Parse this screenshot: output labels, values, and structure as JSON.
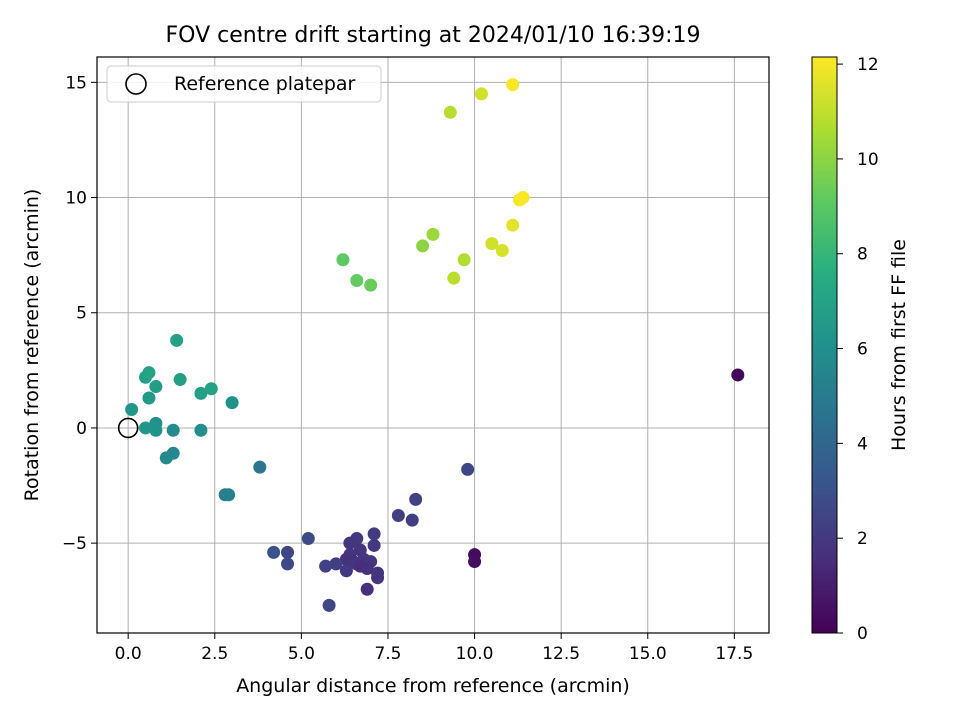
{
  "chart_data": {
    "type": "scatter",
    "title": "FOV centre drift starting at 2024/01/10 16:39:19",
    "xlabel": "Angular distance from reference (arcmin)",
    "ylabel": "Rotation from reference (arcmin)",
    "xlim": [
      -0.9,
      18.5
    ],
    "ylim": [
      -8.9,
      16.1
    ],
    "xticks": [
      0.0,
      2.5,
      5.0,
      7.5,
      10.0,
      12.5,
      15.0,
      17.5
    ],
    "xtick_labels": [
      "0.0",
      "2.5",
      "5.0",
      "7.5",
      "10.0",
      "12.5",
      "15.0",
      "17.5"
    ],
    "yticks": [
      -5,
      0,
      5,
      10,
      15
    ],
    "ytick_labels": [
      "−5",
      "0",
      "5",
      "10",
      "15"
    ],
    "grid": true,
    "legend": {
      "position": "top-left",
      "entries": [
        "Reference platepar"
      ]
    },
    "colorbar": {
      "label": "Hours from first FF file",
      "colormap": "viridis",
      "range": [
        0,
        12.15
      ],
      "ticks": [
        0,
        2,
        4,
        6,
        8,
        10,
        12
      ],
      "tick_labels": [
        "0",
        "2",
        "4",
        "6",
        "8",
        "10",
        "12"
      ]
    },
    "reference_point": {
      "name": "Reference platepar",
      "x": 0.0,
      "y": 0.0
    },
    "points": [
      {
        "x": 17.6,
        "y": 2.3,
        "hours": 0.2
      },
      {
        "x": 10.0,
        "y": -5.5,
        "hours": 0.3
      },
      {
        "x": 10.0,
        "y": -5.8,
        "hours": 0.4
      },
      {
        "x": 9.8,
        "y": -1.8,
        "hours": 2.6
      },
      {
        "x": 8.3,
        "y": -3.1,
        "hours": 2.4
      },
      {
        "x": 7.8,
        "y": -3.8,
        "hours": 2.3
      },
      {
        "x": 8.2,
        "y": -4.0,
        "hours": 2.2
      },
      {
        "x": 7.1,
        "y": -4.6,
        "hours": 2.1
      },
      {
        "x": 7.1,
        "y": -5.1,
        "hours": 2.0
      },
      {
        "x": 6.6,
        "y": -4.8,
        "hours": 2.0
      },
      {
        "x": 6.4,
        "y": -5.0,
        "hours": 1.9
      },
      {
        "x": 6.7,
        "y": -5.3,
        "hours": 1.8
      },
      {
        "x": 6.4,
        "y": -5.5,
        "hours": 1.8
      },
      {
        "x": 6.3,
        "y": -5.7,
        "hours": 1.7
      },
      {
        "x": 6.5,
        "y": -5.8,
        "hours": 1.7
      },
      {
        "x": 6.6,
        "y": -5.9,
        "hours": 1.8
      },
      {
        "x": 6.8,
        "y": -5.7,
        "hours": 1.9
      },
      {
        "x": 7.0,
        "y": -5.8,
        "hours": 1.9
      },
      {
        "x": 6.9,
        "y": -6.1,
        "hours": 1.7
      },
      {
        "x": 6.7,
        "y": -6.0,
        "hours": 1.6
      },
      {
        "x": 7.2,
        "y": -6.3,
        "hours": 1.8
      },
      {
        "x": 7.2,
        "y": -6.5,
        "hours": 1.9
      },
      {
        "x": 6.9,
        "y": -7.0,
        "hours": 1.6
      },
      {
        "x": 6.3,
        "y": -6.2,
        "hours": 2.0
      },
      {
        "x": 6.0,
        "y": -5.9,
        "hours": 2.2
      },
      {
        "x": 5.7,
        "y": -6.0,
        "hours": 2.4
      },
      {
        "x": 5.8,
        "y": -7.7,
        "hours": 2.5
      },
      {
        "x": 5.2,
        "y": -4.8,
        "hours": 2.8
      },
      {
        "x": 4.6,
        "y": -5.4,
        "hours": 2.6
      },
      {
        "x": 4.6,
        "y": -5.9,
        "hours": 2.7
      },
      {
        "x": 4.2,
        "y": -5.4,
        "hours": 3.1
      },
      {
        "x": 3.8,
        "y": -1.7,
        "hours": 4.7
      },
      {
        "x": 2.8,
        "y": -2.9,
        "hours": 5.0
      },
      {
        "x": 2.9,
        "y": -2.9,
        "hours": 5.3
      },
      {
        "x": 1.3,
        "y": -1.1,
        "hours": 5.6
      },
      {
        "x": 1.1,
        "y": -1.3,
        "hours": 5.7
      },
      {
        "x": 1.3,
        "y": -0.1,
        "hours": 5.8
      },
      {
        "x": 2.1,
        "y": -0.1,
        "hours": 6.0
      },
      {
        "x": 0.8,
        "y": 0.2,
        "hours": 6.1
      },
      {
        "x": 0.8,
        "y": -0.1,
        "hours": 6.2
      },
      {
        "x": 0.5,
        "y": 0.0,
        "hours": 6.3
      },
      {
        "x": 0.1,
        "y": 0.8,
        "hours": 6.4
      },
      {
        "x": 0.6,
        "y": 1.3,
        "hours": 6.5
      },
      {
        "x": 3.0,
        "y": 1.1,
        "hours": 6.1
      },
      {
        "x": 2.1,
        "y": 1.5,
        "hours": 6.8
      },
      {
        "x": 2.4,
        "y": 1.7,
        "hours": 6.9
      },
      {
        "x": 0.8,
        "y": 1.8,
        "hours": 6.7
      },
      {
        "x": 0.5,
        "y": 2.2,
        "hours": 6.8
      },
      {
        "x": 0.6,
        "y": 2.4,
        "hours": 7.0
      },
      {
        "x": 1.5,
        "y": 2.1,
        "hours": 6.8
      },
      {
        "x": 1.4,
        "y": 3.8,
        "hours": 6.9
      },
      {
        "x": 6.2,
        "y": 7.3,
        "hours": 9.1
      },
      {
        "x": 6.6,
        "y": 6.4,
        "hours": 9.2
      },
      {
        "x": 7.0,
        "y": 6.2,
        "hours": 9.3
      },
      {
        "x": 8.5,
        "y": 7.9,
        "hours": 10.0
      },
      {
        "x": 8.8,
        "y": 8.4,
        "hours": 10.3
      },
      {
        "x": 9.7,
        "y": 7.3,
        "hours": 10.7
      },
      {
        "x": 9.4,
        "y": 6.5,
        "hours": 10.9
      },
      {
        "x": 10.5,
        "y": 8.0,
        "hours": 11.3
      },
      {
        "x": 10.8,
        "y": 7.7,
        "hours": 11.4
      },
      {
        "x": 11.1,
        "y": 8.8,
        "hours": 11.6
      },
      {
        "x": 11.3,
        "y": 9.9,
        "hours": 12.0
      },
      {
        "x": 11.4,
        "y": 10.0,
        "hours": 12.1
      },
      {
        "x": 9.3,
        "y": 13.7,
        "hours": 10.8
      },
      {
        "x": 10.2,
        "y": 14.5,
        "hours": 11.3
      },
      {
        "x": 11.1,
        "y": 14.9,
        "hours": 12.0
      }
    ]
  }
}
